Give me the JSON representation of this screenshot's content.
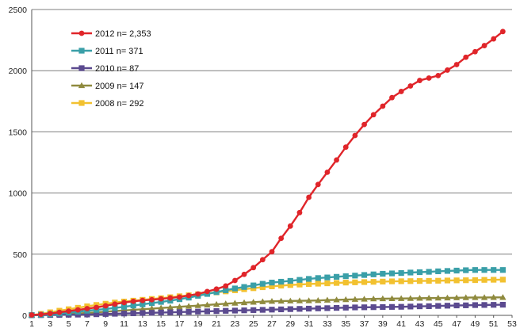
{
  "chart_data": {
    "type": "line",
    "title": "",
    "xlabel": "",
    "ylabel": "",
    "x": [
      1,
      2,
      3,
      4,
      5,
      6,
      7,
      8,
      9,
      10,
      11,
      12,
      13,
      14,
      15,
      16,
      17,
      18,
      19,
      20,
      21,
      22,
      23,
      24,
      25,
      26,
      27,
      28,
      29,
      30,
      31,
      32,
      33,
      34,
      35,
      36,
      37,
      38,
      39,
      40,
      41,
      42,
      43,
      44,
      45,
      46,
      47,
      48,
      49,
      50,
      51,
      52
    ],
    "x_tick_labels": [
      "1",
      "3",
      "5",
      "7",
      "9",
      "11",
      "13",
      "15",
      "17",
      "19",
      "21",
      "23",
      "25",
      "27",
      "29",
      "31",
      "33",
      "35",
      "37",
      "39",
      "41",
      "43",
      "45",
      "47",
      "49",
      "51",
      "53"
    ],
    "xlim": [
      1,
      53
    ],
    "ylim": [
      0,
      2500
    ],
    "y_ticks": [
      0,
      500,
      1000,
      1500,
      2000,
      2500
    ],
    "grid": "horizontal",
    "legend_position": "top-left",
    "series": [
      {
        "name": "2012",
        "n_label": "n= 2,353",
        "color": "#e0252a",
        "marker": "circle",
        "values": [
          3,
          8,
          15,
          25,
          35,
          45,
          55,
          65,
          78,
          92,
          105,
          115,
          122,
          128,
          135,
          142,
          150,
          162,
          175,
          195,
          215,
          240,
          285,
          335,
          390,
          455,
          520,
          630,
          730,
          840,
          965,
          1070,
          1170,
          1270,
          1375,
          1470,
          1560,
          1640,
          1710,
          1780,
          1830,
          1875,
          1920,
          1940,
          1960,
          2005,
          2050,
          2110,
          2155,
          2205,
          2260,
          2320
        ]
      },
      {
        "name": "2011",
        "n_label": "n= 371",
        "color": "#3a9fa8",
        "marker": "square",
        "values": [
          2,
          5,
          9,
          15,
          22,
          30,
          38,
          45,
          52,
          60,
          70,
          80,
          90,
          100,
          110,
          120,
          132,
          145,
          160,
          175,
          190,
          205,
          220,
          232,
          245,
          258,
          268,
          275,
          282,
          290,
          298,
          305,
          310,
          315,
          320,
          325,
          330,
          335,
          340,
          343,
          346,
          350,
          353,
          356,
          360,
          363,
          366,
          369,
          371,
          371,
          371,
          371
        ]
      },
      {
        "name": "2010",
        "n_label": "n= 87",
        "color": "#5b4a8f",
        "marker": "square",
        "values": [
          1,
          2,
          3,
          4,
          5,
          6,
          7,
          9,
          11,
          13,
          15,
          17,
          19,
          21,
          23,
          25,
          27,
          29,
          31,
          33,
          35,
          37,
          39,
          41,
          43,
          45,
          47,
          49,
          51,
          53,
          55,
          57,
          59,
          61,
          63,
          65,
          66,
          67,
          68,
          69,
          70,
          72,
          74,
          75,
          77,
          79,
          81,
          82,
          84,
          85,
          86,
          87
        ]
      },
      {
        "name": "2009",
        "n_label": "n= 147",
        "color": "#8f8a3e",
        "marker": "triangle",
        "values": [
          1,
          3,
          5,
          8,
          11,
          15,
          20,
          25,
          30,
          35,
          40,
          45,
          50,
          55,
          60,
          65,
          70,
          75,
          80,
          85,
          90,
          95,
          100,
          104,
          108,
          112,
          115,
          117,
          118,
          119,
          120,
          122,
          125,
          127,
          129,
          131,
          133,
          135,
          136,
          137,
          138,
          139,
          140,
          141,
          142,
          143,
          144,
          145,
          146,
          146,
          147,
          147
        ]
      },
      {
        "name": "2008",
        "n_label": "n= 292",
        "color": "#f2c130",
        "marker": "square",
        "values": [
          3,
          12,
          25,
          38,
          50,
          62,
          74,
          85,
          95,
          105,
          113,
          120,
          127,
          134,
          140,
          148,
          156,
          164,
          172,
          180,
          188,
          196,
          205,
          214,
          222,
          230,
          237,
          243,
          248,
          252,
          256,
          259,
          262,
          265,
          268,
          270,
          272,
          274,
          276,
          278,
          279,
          280,
          281,
          282,
          283,
          285,
          286,
          287,
          288,
          290,
          291,
          292
        ]
      }
    ]
  }
}
